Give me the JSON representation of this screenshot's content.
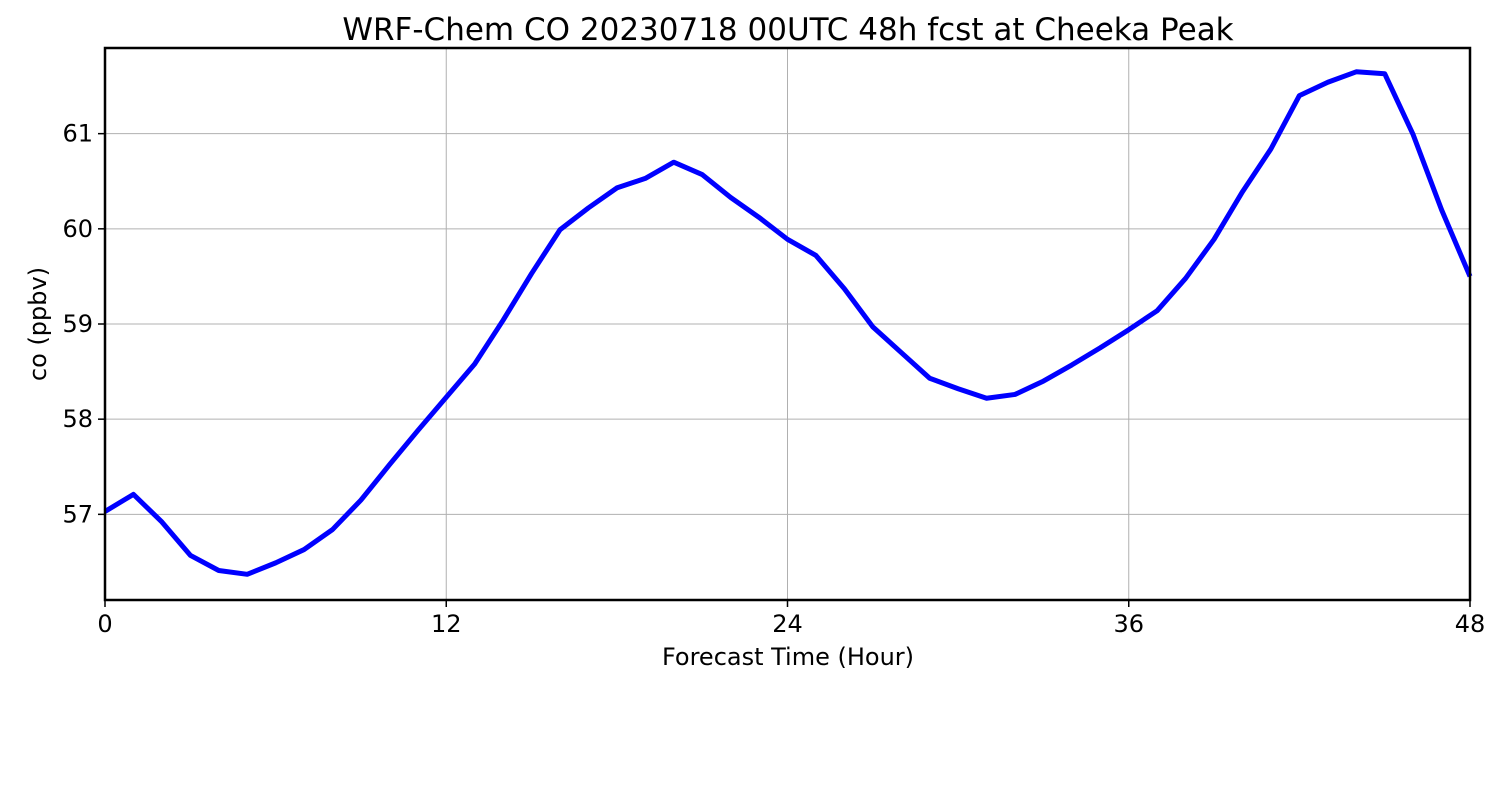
{
  "chart_data": {
    "type": "line",
    "title": "WRF-Chem CO  20230718 00UTC 48h fcst at Cheeka Peak",
    "xlabel": "Forecast Time (Hour)",
    "ylabel": "co  (ppbv)",
    "xlim": [
      0,
      48
    ],
    "ylim": [
      56.1,
      61.9
    ],
    "xticks": [
      0,
      12,
      24,
      36,
      48
    ],
    "xtick_labels": [
      "0",
      "12",
      "24",
      "36",
      "48"
    ],
    "yticks": [
      57,
      58,
      59,
      60,
      61
    ],
    "ytick_labels": [
      "57",
      "58",
      "59",
      "60",
      "61"
    ],
    "grid": true,
    "legend": "none",
    "series": [
      {
        "color": "#0000ff",
        "x": [
          0,
          1,
          2,
          3,
          4,
          5,
          6,
          7,
          8,
          9,
          10,
          11,
          12,
          13,
          14,
          15,
          16,
          17,
          18,
          19,
          20,
          21,
          22,
          23,
          24,
          25,
          26,
          27,
          28,
          29,
          30,
          31,
          32,
          33,
          34,
          35,
          36,
          37,
          38,
          39,
          40,
          41,
          42,
          43,
          44,
          45,
          46,
          47,
          48
        ],
        "values": [
          57.03,
          57.21,
          56.92,
          56.57,
          56.41,
          56.37,
          56.49,
          56.63,
          56.84,
          57.15,
          57.52,
          57.88,
          58.23,
          58.58,
          59.04,
          59.53,
          59.99,
          60.22,
          60.43,
          60.53,
          60.7,
          60.57,
          60.33,
          60.12,
          59.89,
          59.72,
          59.37,
          58.97,
          58.7,
          58.43,
          58.32,
          58.22,
          58.26,
          58.4,
          58.57,
          58.75,
          58.94,
          59.14,
          59.48,
          59.89,
          60.39,
          60.84,
          61.4,
          61.54,
          61.65,
          61.63,
          60.99,
          60.2,
          59.5
        ]
      }
    ]
  }
}
